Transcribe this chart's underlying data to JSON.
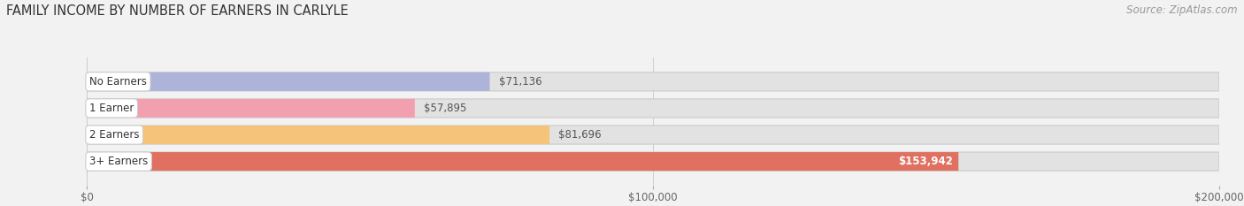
{
  "title": "FAMILY INCOME BY NUMBER OF EARNERS IN CARLYLE",
  "source": "Source: ZipAtlas.com",
  "categories": [
    "No Earners",
    "1 Earner",
    "2 Earners",
    "3+ Earners"
  ],
  "values": [
    71136,
    57895,
    81696,
    153942
  ],
  "labels": [
    "$71,136",
    "$57,895",
    "$81,696",
    "$153,942"
  ],
  "bar_colors": [
    "#adb3d9",
    "#f2a0b0",
    "#f5c47a",
    "#e07060"
  ],
  "bg_color": "#f2f2f2",
  "bar_bg_color": "#e2e2e2",
  "xlim": [
    0,
    200000
  ],
  "xticks": [
    0,
    100000,
    200000
  ],
  "xticklabels": [
    "$0",
    "$100,000",
    "$200,000"
  ],
  "title_fontsize": 10.5,
  "label_fontsize": 8.5,
  "value_fontsize": 8.5,
  "tick_fontsize": 8.5,
  "source_fontsize": 8.5,
  "bar_height": 0.7,
  "bar_gap": 1.0
}
